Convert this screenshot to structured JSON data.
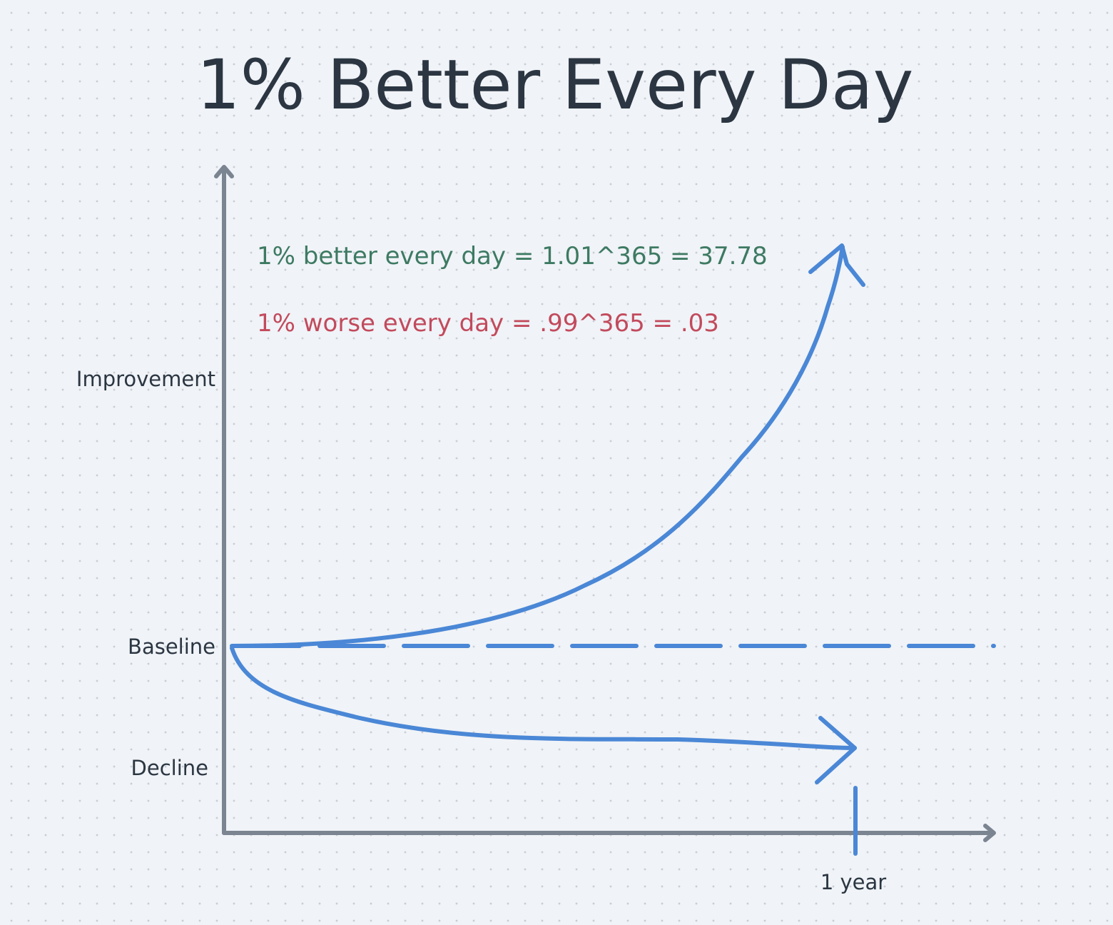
{
  "chart_data": {
    "type": "line",
    "title": "1% Better Every Day",
    "xlabel": "",
    "ylabel": "",
    "y_tick_labels": [
      "Improvement",
      "Baseline",
      "Decline"
    ],
    "x_tick_labels": [
      "1 year"
    ],
    "annotations": [
      {
        "text": "1% better every day = 1.01^365 = 37.78",
        "color": "#3d7a62"
      },
      {
        "text": "1% worse every day = .99^365 = .03",
        "color": "#c24a5c"
      }
    ],
    "series": [
      {
        "color": "#4a87d6",
        "style": "solid",
        "shape": "exponential-growth"
      },
      {
        "color": "#4a87d6",
        "style": "dashed",
        "shape": "flat"
      },
      {
        "color": "#4a87d6",
        "style": "solid",
        "shape": "exponential-decay"
      }
    ],
    "colors": {
      "axis": "#7b8491",
      "text": "#2b3642",
      "curve": "#4a87d6",
      "better": "#3d7a62",
      "worse": "#c24a5c",
      "background": "#f0f3f7"
    }
  }
}
